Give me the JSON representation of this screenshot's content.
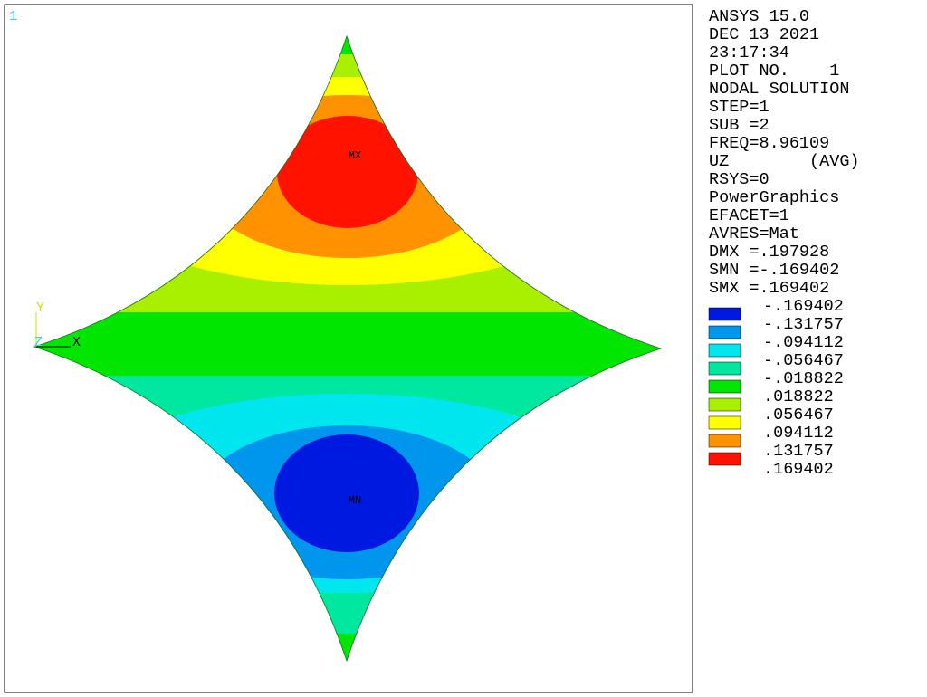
{
  "window_number": "1",
  "info": [
    "ANSYS 15.0",
    "DEC 13 2021",
    "23:17:34",
    "PLOT NO.    1",
    "NODAL SOLUTION",
    "STEP=1",
    "SUB =2",
    "FREQ=8.96109",
    "UZ        (AVG)",
    "RSYS=0",
    "PowerGraphics",
    "EFACET=1",
    "AVRES=Mat",
    "DMX =.197928",
    "SMN =-.169402",
    "SMX =.169402"
  ],
  "legend": {
    "labels": [
      "-.169402",
      "-.131757",
      "-.094112",
      "-.056467",
      "-.018822",
      ".018822",
      ".056467",
      ".094112",
      ".131757",
      ".169402"
    ],
    "colors": [
      "#0019e0",
      "#0096ee",
      "#00e6ee",
      "#00e8a0",
      "#00e600",
      "#a8f000",
      "#ffff00",
      "#ff9200",
      "#ff1200"
    ]
  },
  "markers": {
    "max": "MX",
    "min": "MN"
  },
  "triad": {
    "x": "X",
    "y": "Y",
    "z": "Z"
  }
}
